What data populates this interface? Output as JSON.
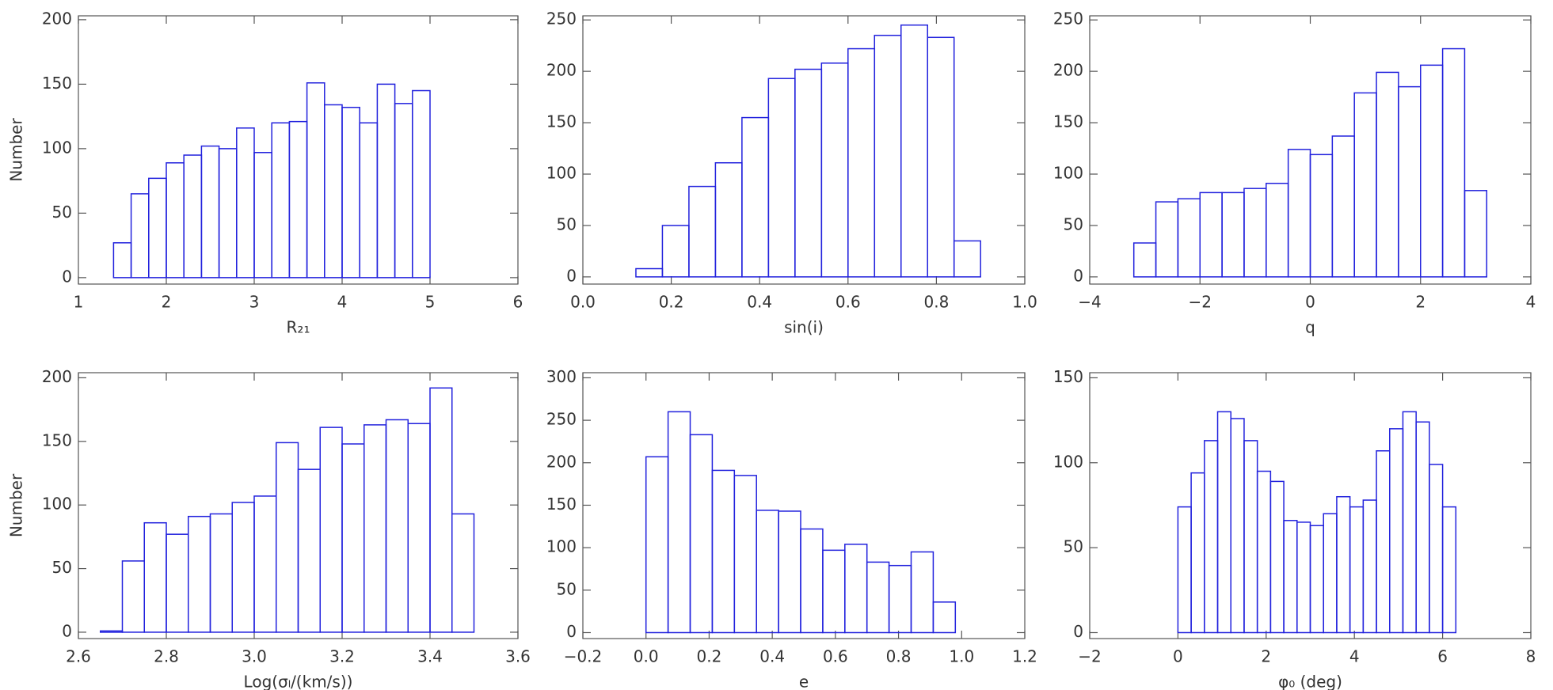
{
  "chart_data": [
    {
      "type": "histogram",
      "xlabel": "R₂₁",
      "ylabel": "Number",
      "color": "#2222dd",
      "bins": [
        1.4,
        1.6,
        1.8,
        2.0,
        2.2,
        2.4,
        2.6,
        2.8,
        3.0,
        3.2,
        3.4,
        3.6,
        3.8,
        4.0,
        4.2,
        4.4,
        4.6,
        4.8,
        5.0
      ],
      "values": [
        27,
        65,
        77,
        89,
        95,
        102,
        100,
        116,
        97,
        120,
        121,
        151,
        134,
        132,
        120,
        150,
        135,
        145
      ],
      "xlim": [
        1,
        6
      ],
      "xticks": [
        1,
        2,
        3,
        4,
        5,
        6
      ],
      "ylim": [
        -5,
        203
      ],
      "yticks": [
        0,
        50,
        100,
        150,
        200
      ]
    },
    {
      "type": "histogram",
      "xlabel": "sin(i)",
      "color": "#2222dd",
      "bins": [
        0.12,
        0.18,
        0.24,
        0.3,
        0.36,
        0.42,
        0.48,
        0.54,
        0.6,
        0.66,
        0.72,
        0.78,
        0.84,
        0.9
      ],
      "values": [
        8,
        50,
        88,
        111,
        155,
        193,
        202,
        208,
        222,
        235,
        245,
        233,
        35
      ],
      "xlim": [
        0,
        1
      ],
      "xticks": [
        {
          "value": 0,
          "label": "0.0"
        },
        0.2,
        0.4,
        0.6,
        0.8,
        {
          "value": 1,
          "label": "1.0"
        }
      ],
      "ylim": [
        -7,
        254
      ],
      "yticks": [
        0,
        50,
        100,
        150,
        200,
        250
      ]
    },
    {
      "type": "histogram",
      "xlabel": "q",
      "color": "#2222dd",
      "bins": [
        -3.2,
        -2.8,
        -2.4,
        -2.0,
        -1.6,
        -1.2,
        -0.8,
        -0.4,
        0,
        0.4,
        0.8,
        1.2,
        1.6,
        2.0,
        2.4,
        2.8,
        3.2
      ],
      "values": [
        33,
        73,
        76,
        82,
        82,
        86,
        91,
        124,
        119,
        137,
        179,
        199,
        185,
        206,
        222,
        84
      ],
      "xlim": [
        -4,
        4
      ],
      "xticks": [
        {
          "value": -4,
          "label": "−4"
        },
        {
          "value": -2,
          "label": "−2"
        },
        0,
        2,
        4
      ],
      "ylim": [
        -7,
        254
      ],
      "yticks": [
        0,
        50,
        100,
        150,
        200,
        250
      ]
    },
    {
      "type": "histogram",
      "xlabel": "Log(σₗ/(km/s))",
      "ylabel": "Number",
      "color": "#2222dd",
      "bins": [
        2.65,
        2.7,
        2.75,
        2.8,
        2.85,
        2.9,
        2.95,
        3.0,
        3.05,
        3.1,
        3.15,
        3.2,
        3.25,
        3.3,
        3.35,
        3.4,
        3.45,
        3.5
      ],
      "values": [
        1,
        56,
        86,
        77,
        91,
        93,
        102,
        107,
        149,
        128,
        161,
        148,
        163,
        167,
        164,
        192,
        93
      ],
      "xlim": [
        2.6,
        3.6
      ],
      "xticks": [
        2.6,
        2.8,
        {
          "value": 3,
          "label": "3.0"
        },
        3.2,
        3.4,
        3.6
      ],
      "ylim": [
        -5,
        204
      ],
      "yticks": [
        0,
        50,
        100,
        150,
        200
      ]
    },
    {
      "type": "histogram",
      "xlabel": "e",
      "color": "#2222dd",
      "bins": [
        0,
        0.07,
        0.14,
        0.21,
        0.28,
        0.35,
        0.42,
        0.49,
        0.56,
        0.63,
        0.7,
        0.77,
        0.84,
        0.91,
        0.98
      ],
      "values": [
        207,
        260,
        233,
        191,
        185,
        144,
        143,
        122,
        97,
        104,
        83,
        79,
        95,
        36
      ],
      "xlim": [
        -0.2,
        1.2
      ],
      "xticks": [
        {
          "value": -0.2,
          "label": "−0.2"
        },
        {
          "value": 0,
          "label": "0.0"
        },
        0.2,
        0.4,
        0.6,
        0.8,
        {
          "value": 1,
          "label": "1.0"
        },
        1.2
      ],
      "ylim": [
        -7,
        306
      ],
      "yticks": [
        0,
        50,
        100,
        150,
        200,
        250,
        300
      ]
    },
    {
      "type": "histogram",
      "xlabel": "φ₀ (deg)",
      "color": "#2222dd",
      "bins": [
        0,
        0.3,
        0.6,
        0.9,
        1.2,
        1.5,
        1.8,
        2.1,
        2.4,
        2.7,
        3.0,
        3.3,
        3.6,
        3.9,
        4.2,
        4.5,
        4.8,
        5.1,
        5.4,
        5.7,
        6.0,
        6.3
      ],
      "values": [
        74,
        94,
        113,
        130,
        126,
        113,
        95,
        89,
        66,
        65,
        63,
        70,
        80,
        74,
        78,
        107,
        120,
        130,
        124,
        99,
        74
      ],
      "xlim": [
        -2,
        8
      ],
      "xticks": [
        {
          "value": -2,
          "label": "−2"
        },
        0,
        2,
        4,
        6,
        8
      ],
      "ylim": [
        -3.5,
        153
      ],
      "yticks": [
        0,
        50,
        100,
        150
      ]
    }
  ]
}
